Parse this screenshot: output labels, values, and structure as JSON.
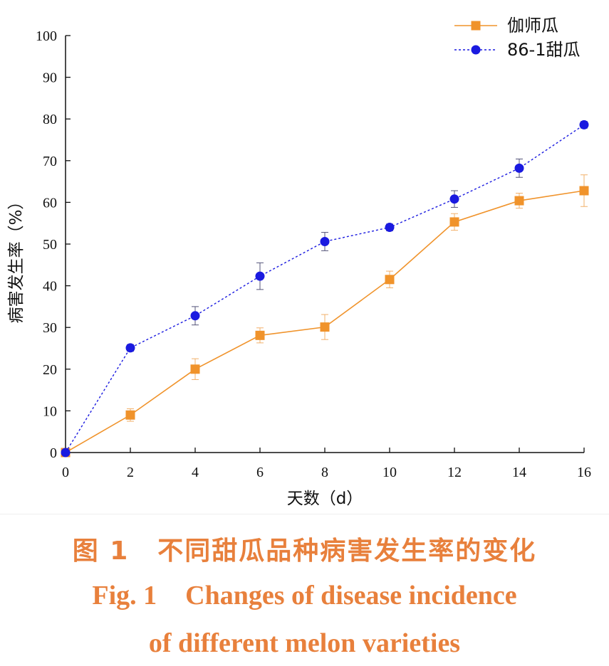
{
  "chart_data": {
    "type": "line",
    "title": "",
    "xlabel": "天数（d）",
    "ylabel": "病害发生率（%）",
    "xlim": [
      0,
      16
    ],
    "ylim": [
      0,
      100
    ],
    "x_ticks": [
      0,
      2,
      4,
      6,
      8,
      10,
      12,
      14,
      16
    ],
    "y_ticks": [
      0,
      10,
      20,
      30,
      40,
      50,
      60,
      70,
      80,
      90,
      100
    ],
    "x": [
      0,
      2,
      4,
      6,
      8,
      10,
      12,
      14,
      16
    ],
    "grid": false,
    "legend_position": "top-right",
    "series": [
      {
        "name": "伽师瓜",
        "marker": "square",
        "line_style": "solid",
        "color": "#f0932b",
        "values": [
          0,
          9.0,
          20.0,
          28.1,
          30.1,
          41.5,
          55.3,
          60.4,
          62.8
        ],
        "errors": [
          0,
          1.5,
          2.5,
          1.8,
          3.0,
          2.0,
          2.0,
          1.8,
          3.8
        ]
      },
      {
        "name": "86-1甜瓜",
        "marker": "circle",
        "line_style": "dotted",
        "color": "#1a1ae0",
        "values": [
          0,
          25.1,
          32.8,
          42.3,
          50.6,
          54.0,
          60.8,
          68.2,
          78.6
        ],
        "errors": [
          0,
          0.8,
          2.2,
          3.2,
          2.2,
          0.8,
          2.0,
          2.2,
          0.8
        ]
      }
    ]
  },
  "caption": {
    "cn_label": "图 1",
    "cn_text": "不同甜瓜品种病害发生率的变化",
    "en_label": "Fig. 1",
    "en_text_line1": "Changes of disease incidence",
    "en_text_line2": "of different melon varieties"
  }
}
